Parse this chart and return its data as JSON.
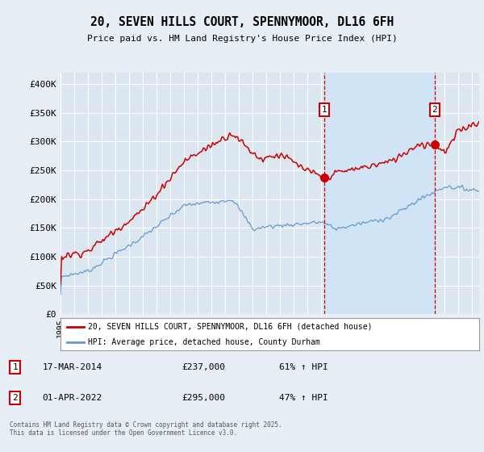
{
  "title": "20, SEVEN HILLS COURT, SPENNYMOOR, DL16 6FH",
  "subtitle": "Price paid vs. HM Land Registry's House Price Index (HPI)",
  "bg_color": "#e8eef5",
  "plot_bg_color": "#dce6f0",
  "highlight_bg_color": "#d0e4f5",
  "red_color": "#cc0000",
  "blue_color": "#6699cc",
  "grid_color": "#ffffff",
  "ylim": [
    0,
    420000
  ],
  "yticks": [
    0,
    50000,
    100000,
    150000,
    200000,
    250000,
    300000,
    350000,
    400000
  ],
  "ytick_labels": [
    "£0",
    "£50K",
    "£100K",
    "£150K",
    "£200K",
    "£250K",
    "£300K",
    "£350K",
    "£400K"
  ],
  "sale1_date": "17-MAR-2014",
  "sale1_price": 237000,
  "sale1_pct": "61%",
  "sale2_date": "01-APR-2022",
  "sale2_price": 295000,
  "sale2_pct": "47%",
  "sale1_x": 2014.21,
  "sale2_x": 2022.25,
  "xlim_start": 1995.0,
  "xlim_end": 2025.5,
  "footnote": "Contains HM Land Registry data © Crown copyright and database right 2025.\nThis data is licensed under the Open Government Licence v3.0.",
  "legend1": "20, SEVEN HILLS COURT, SPENNYMOOR, DL16 6FH (detached house)",
  "legend2": "HPI: Average price, detached house, County Durham"
}
